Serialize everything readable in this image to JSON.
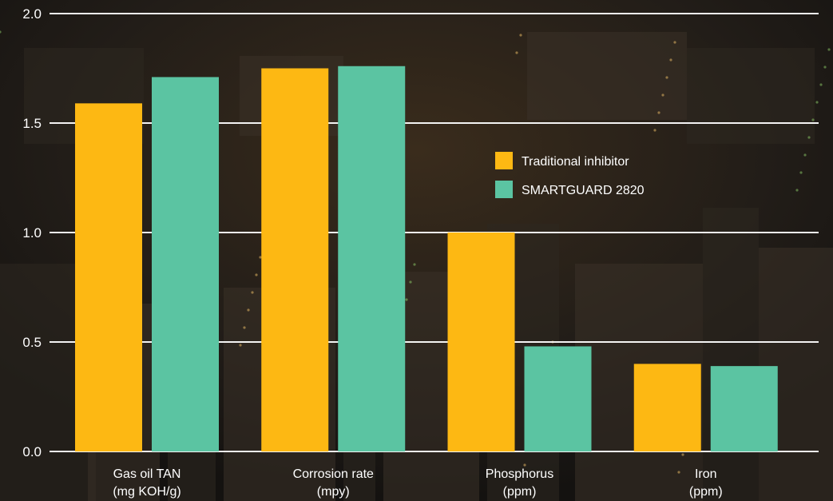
{
  "chart_data": {
    "type": "bar",
    "categories": [
      {
        "line1": "Gas oil TAN",
        "line2": "(mg KOH/g)"
      },
      {
        "line1": "Corrosion rate",
        "line2": "(mpy)"
      },
      {
        "line1": "Phosphorus",
        "line2": "(ppm)"
      },
      {
        "line1": "Iron",
        "line2": "(ppm)"
      }
    ],
    "series": [
      {
        "name": "Traditional inhibitor",
        "color": "#fdb813",
        "values": [
          1.59,
          1.75,
          1.0,
          0.4
        ]
      },
      {
        "name": "SMARTGUARD 2820",
        "color": "#5bc4a2",
        "values": [
          1.71,
          1.76,
          0.48,
          0.39
        ]
      }
    ],
    "yticks": [
      "0.0",
      "0.5",
      "1.0",
      "1.5",
      "2.0"
    ],
    "ylim": [
      0,
      2.0
    ],
    "grid": true,
    "legend_position": "upper-right-inside",
    "background": "photo of an industrial refinery at night, darkened"
  }
}
